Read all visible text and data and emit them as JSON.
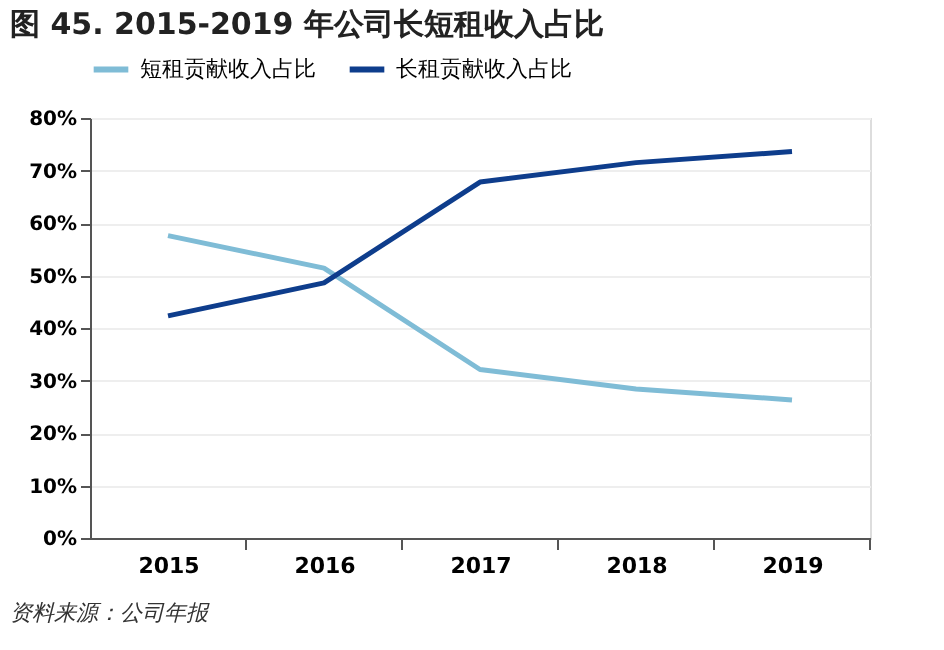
{
  "chart_data": {
    "type": "line",
    "title": "图 45. 2015-2019 年公司长短租收入占比",
    "categories": [
      "2015",
      "2016",
      "2017",
      "2018",
      "2019"
    ],
    "series": [
      {
        "name": "短租贡献收入占比",
        "color": "#7fbcd6",
        "values": [
          57.6,
          51.4,
          32.1,
          28.4,
          26.3
        ]
      },
      {
        "name": "长租贡献收入占比",
        "color": "#0e3d8c",
        "values": [
          42.3,
          48.6,
          67.8,
          71.5,
          73.6
        ]
      }
    ],
    "ylim": [
      0,
      80
    ],
    "yticks": [
      {
        "value": 0,
        "label": "0%"
      },
      {
        "value": 10,
        "label": "10%"
      },
      {
        "value": 20,
        "label": "20%"
      },
      {
        "value": 30,
        "label": "30%"
      },
      {
        "value": 40,
        "label": "40%"
      },
      {
        "value": 50,
        "label": "50%"
      },
      {
        "value": 60,
        "label": "60%"
      },
      {
        "value": 70,
        "label": "70%"
      },
      {
        "value": 80,
        "label": "80%"
      }
    ],
    "grid": "y",
    "legend": "top",
    "marker": "none",
    "line_style": "solid",
    "annotations": [
      "资料来源：公司年报"
    ]
  }
}
